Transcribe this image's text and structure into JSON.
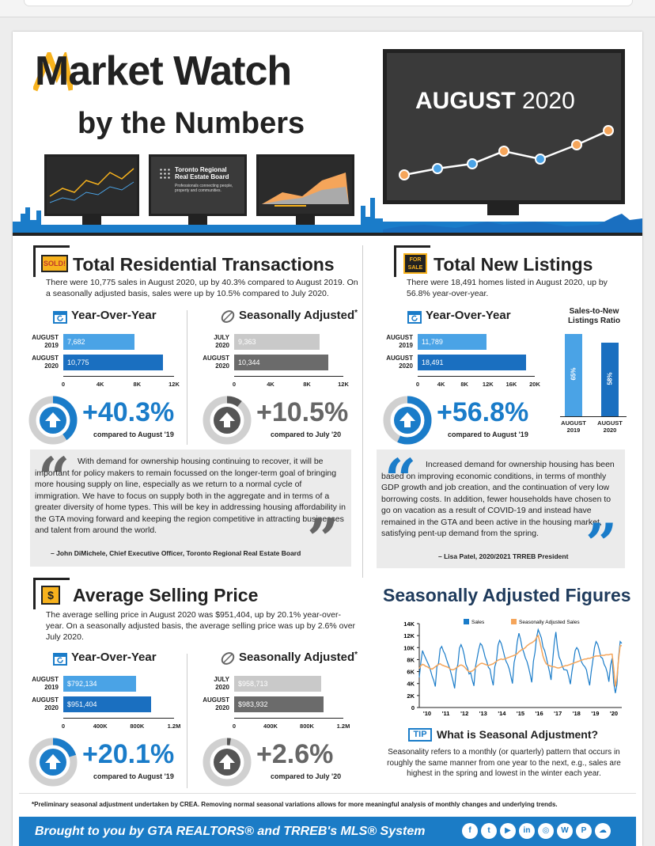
{
  "header": {
    "title_line1": "Market Watch",
    "title_line2": "by the Numbers",
    "month_label": "AUGUST",
    "year_label": "2020",
    "board_name_line1": "Toronto Regional",
    "board_name_line2": "Real Estate Board",
    "board_tagline": "Professionals connecting people, property and communities."
  },
  "transactions": {
    "heading": "Total Residential Transactions",
    "sign": "SOLD!",
    "body": "There were 10,775 sales in August 2020, up by 40.3% compared to August 2019. On a seasonally adjusted basis, sales were up by 10.5% compared to July 2020.",
    "yoy": {
      "heading": "Year-Over-Year",
      "rows": [
        {
          "label1": "AUGUST",
          "label2": "2019",
          "value_text": "7,682",
          "value": 7682
        },
        {
          "label1": "AUGUST",
          "label2": "2020",
          "value_text": "10,775",
          "value": 10775
        }
      ],
      "ticks": [
        "0",
        "4K",
        "8K",
        "12K"
      ],
      "max": 12000,
      "pct": "+40.3%",
      "pct_fraction": 0.403,
      "compared": "compared to August '19"
    },
    "sa": {
      "heading": "Seasonally Adjusted",
      "rows": [
        {
          "label1": "JULY",
          "label2": "2020",
          "value_text": "9,363",
          "value": 9363
        },
        {
          "label1": "AUGUST",
          "label2": "2020",
          "value_text": "10,344",
          "value": 10344
        }
      ],
      "ticks": [
        "0",
        "4K",
        "8K",
        "12K"
      ],
      "max": 12000,
      "pct": "+10.5%",
      "pct_fraction": 0.105,
      "compared": "compared to July '20"
    },
    "quote": "With demand for ownership housing continuing to recover, it will be important for policy makers to remain focussed on the longer-term goal of bringing more housing supply on line, especially as we return to a normal cycle of immigration. We have to focus on supply both in the aggregate and in terms of a greater diversity of home types. This will be key in addressing housing affordability in the GTA moving forward and keeping the region competitive in attracting businesses and talent from around the world.",
    "attribution": "– John DiMichele, Chief Executive Officer, Toronto Regional Real Estate Board"
  },
  "listings": {
    "heading": "Total New Listings",
    "sign": "FOR SALE",
    "body": "There were 18,491 homes listed in August 2020, up by 56.8% year-over-year.",
    "yoy": {
      "heading": "Year-Over-Year",
      "rows": [
        {
          "label1": "AUGUST",
          "label2": "2019",
          "value_text": "11,789",
          "value": 11789
        },
        {
          "label1": "AUGUST",
          "label2": "2020",
          "value_text": "18,491",
          "value": 18491
        }
      ],
      "ticks": [
        "0",
        "4K",
        "8K",
        "12K",
        "16K",
        "20K"
      ],
      "max": 20000,
      "pct": "+56.8%",
      "pct_fraction": 0.568,
      "compared": "compared to August '19"
    },
    "ratio": {
      "heading": "Sales-to-New Listings Ratio",
      "bars": [
        {
          "value_text": "65%",
          "value": 65,
          "label1": "AUGUST",
          "label2": "2019"
        },
        {
          "value_text": "58%",
          "value": 58,
          "label1": "AUGUST",
          "label2": "2020"
        }
      ]
    },
    "quote": "Increased demand for ownership housing has been based on improving economic conditions, in terms of monthly GDP growth and job creation, and the continuation of very low borrowing costs. In addition, fewer households have chosen to go on vacation as a result of COVID-19 and instead have remained in the GTA and been active in the housing market, satisfying pent-up demand from the spring.",
    "attribution": "– Lisa Patel, 2020/2021 TRREB President"
  },
  "price": {
    "heading": "Average Selling Price",
    "body": "The average selling price in August 2020 was $951,404, up by 20.1% year-over-year. On a seasonally adjusted basis, the average selling price was up by 2.6% over July 2020.",
    "yoy": {
      "heading": "Year-Over-Year",
      "rows": [
        {
          "label1": "AUGUST",
          "label2": "2019",
          "value_text": "$792,134",
          "value": 792134
        },
        {
          "label1": "AUGUST",
          "label2": "2020",
          "value_text": "$951,404",
          "value": 951404
        }
      ],
      "ticks": [
        "0",
        "400K",
        "800K",
        "1.2M"
      ],
      "max": 1200000,
      "pct": "+20.1%",
      "pct_fraction": 0.201,
      "compared": "compared to August '19"
    },
    "sa": {
      "heading": "Seasonally Adjusted",
      "rows": [
        {
          "label1": "JULY",
          "label2": "2020",
          "value_text": "$958,713",
          "value": 958713
        },
        {
          "label1": "AUGUST",
          "label2": "2020",
          "value_text": "$983,932",
          "value": 983932
        }
      ],
      "ticks": [
        "0",
        "400K",
        "800K",
        "1.2M"
      ],
      "max": 1200000,
      "pct": "+2.6%",
      "pct_fraction": 0.026,
      "compared": "compared to July '20"
    }
  },
  "chart_data": {
    "type": "line",
    "title": "Seasonally Adjusted Figures",
    "series": [
      {
        "name": "Sales",
        "color": "#1a7cc9"
      },
      {
        "name": "Seasonally Adjusted Sales",
        "color": "#f5a55a"
      }
    ],
    "x_ticks": [
      "'10",
      "'11",
      "'12",
      "'13",
      "'14",
      "'15",
      "'16",
      "'17",
      "'18",
      "'19",
      "'20"
    ],
    "y_ticks": [
      "0",
      "2K",
      "4K",
      "6K",
      "8K",
      "10K",
      "12K",
      "14K"
    ],
    "ylim": [
      0,
      14000
    ],
    "sales_values": [
      5000,
      7500,
      9500,
      8800,
      8200,
      7600,
      7000,
      6200,
      5200,
      4500,
      3500,
      6800,
      7400,
      9800,
      10200,
      9400,
      8900,
      8000,
      7200,
      6500,
      5500,
      4400,
      3200,
      6200,
      7200,
      9900,
      10500,
      9800,
      8700,
      7200,
      6600,
      5600,
      5800,
      4600,
      3600,
      6800,
      8200,
      9700,
      10700,
      10400,
      9500,
      8400,
      7700,
      6700,
      6400,
      4900,
      3700,
      6800,
      7700,
      10400,
      11200,
      10700,
      9700,
      8600,
      7700,
      7200,
      6400,
      5200,
      4000,
      7500,
      8700,
      11000,
      12400,
      11400,
      10000,
      9200,
      8300,
      7700,
      6700,
      5500,
      4200,
      7700,
      9200,
      11700,
      13000,
      12300,
      11600,
      10100,
      9500,
      8400,
      7200,
      6000,
      4600,
      7800,
      10800,
      12600,
      10000,
      8400,
      7800,
      6900,
      6300,
      6300,
      6200,
      5100,
      3900,
      6000,
      7600,
      9500,
      10000,
      9600,
      8500,
      7600,
      7100,
      6800,
      6300,
      4900,
      3700,
      6000,
      7800,
      10000,
      11000,
      10600,
      9600,
      8400,
      8200,
      7200,
      6700,
      5800,
      4300,
      7000,
      8200,
      4100,
      2400,
      3900,
      8400,
      11000,
      10700
    ],
    "sa_values": [
      6500,
      7000,
      7200,
      7100,
      6900,
      6800,
      6600,
      6500,
      6400,
      6600,
      6800,
      7000,
      7200,
      7300,
      7100,
      7000,
      6900,
      6800,
      6700,
      6500,
      6300,
      6300,
      6400,
      6600,
      6800,
      7000,
      7100,
      7000,
      6800,
      6500,
      6200,
      6000,
      6000,
      6100,
      6300,
      6600,
      6900,
      7100,
      7300,
      7400,
      7300,
      7200,
      7100,
      7000,
      7100,
      7200,
      7300,
      7500,
      7700,
      7900,
      8000,
      8100,
      8000,
      8100,
      8200,
      8300,
      8400,
      8500,
      8600,
      8700,
      8800,
      9000,
      9300,
      9500,
      9700,
      9800,
      10000,
      10300,
      10500,
      10700,
      10800,
      11000,
      11200,
      11700,
      12000,
      11000,
      9800,
      8600,
      7800,
      7300,
      7100,
      7000,
      6900,
      6800,
      6800,
      6700,
      6600,
      6600,
      6700,
      6800,
      6900,
      7000,
      7000,
      7100,
      7200,
      7300,
      7400,
      7500,
      7600,
      7700,
      7800,
      7900,
      8000,
      8100,
      8100,
      8200,
      8200,
      8300,
      8400,
      8500,
      8600,
      8600,
      8600,
      8700,
      8700,
      8700,
      8800,
      8800,
      8800,
      8900,
      8900,
      6500,
      3500,
      5000,
      8000,
      10300,
      10344
    ]
  },
  "tip": {
    "badge": "TIP",
    "heading": "What is Seasonal Adjustment?",
    "body": "Seasonality refers to a monthly (or quarterly) pattern that occurs in roughly the same manner from one year to the next, e.g., sales are highest in the spring and lowest in the winter each year."
  },
  "footer": {
    "note": "*Preliminary seasonal adjustment undertaken by CREA. Removing normal seasonal variations allows for more meaningful analysis of monthly changes and underlying trends.",
    "brought": "Brought to you by GTA REALTORS® and TRREB's MLS® System",
    "socials": [
      "facebook-icon",
      "twitter-icon",
      "youtube-icon",
      "linkedin-icon",
      "instagram-icon",
      "wordpress-icon",
      "pinterest-icon",
      "soundcloud-icon"
    ]
  },
  "colors": {
    "blue_light": "#4aa3e6",
    "blue_dark": "#1a6fc0",
    "gray_light": "#c9c9c9",
    "gray_dark": "#6b6b6b",
    "orange": "#f5a55a",
    "logo_orange": "#f7b21d"
  }
}
